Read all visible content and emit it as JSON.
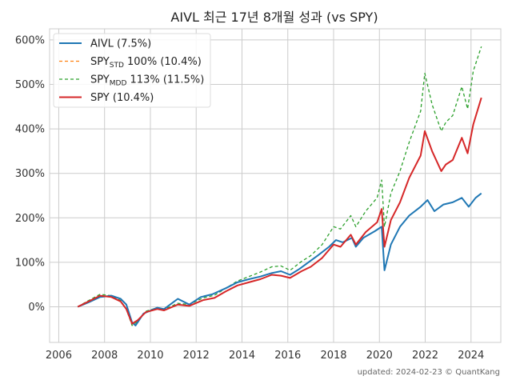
{
  "chart_data": {
    "type": "line",
    "title": "AIVL 최근 17년 8개월 성과 (vs SPY)",
    "xlabel": "",
    "ylabel": "",
    "xlim": [
      2005.6,
      2025.3
    ],
    "ylim": [
      -0.8,
      6.25
    ],
    "x_ticks": [
      {
        "value": 2006,
        "label": "2006"
      },
      {
        "value": 2008,
        "label": "2008"
      },
      {
        "value": 2010,
        "label": "2010"
      },
      {
        "value": 2012,
        "label": "2012"
      },
      {
        "value": 2014,
        "label": "2014"
      },
      {
        "value": 2016,
        "label": "2016"
      },
      {
        "value": 2018,
        "label": "2018"
      },
      {
        "value": 2020,
        "label": "2020"
      },
      {
        "value": 2022,
        "label": "2022"
      },
      {
        "value": 2024,
        "label": "2024"
      }
    ],
    "y_ticks": [
      {
        "value": 0,
        "label": "0%"
      },
      {
        "value": 1,
        "label": "100%"
      },
      {
        "value": 2,
        "label": "200%"
      },
      {
        "value": 3,
        "label": "300%"
      },
      {
        "value": 4,
        "label": "400%"
      },
      {
        "value": 5,
        "label": "500%"
      },
      {
        "value": 6,
        "label": "600%"
      }
    ],
    "grid": true,
    "legend_position": "top-left",
    "footer": "updated: 2024-02-23 © QuantKang",
    "series": [
      {
        "name": "AIVL (7.5%)",
        "legend_main": "AIVL (7.5%)",
        "legend_sub": "",
        "legend_tail": "",
        "color": "#1f77b4",
        "dash": "solid",
        "draw_order": 2,
        "points": [
          [
            2006.83,
            0.0
          ],
          [
            2007.3,
            0.1
          ],
          [
            2007.8,
            0.22
          ],
          [
            2008.3,
            0.25
          ],
          [
            2008.7,
            0.18
          ],
          [
            2008.95,
            0.05
          ],
          [
            2009.2,
            -0.35
          ],
          [
            2009.35,
            -0.42
          ],
          [
            2009.7,
            -0.15
          ],
          [
            2010.3,
            -0.02
          ],
          [
            2010.6,
            -0.05
          ],
          [
            2011.2,
            0.18
          ],
          [
            2011.7,
            0.05
          ],
          [
            2012.2,
            0.22
          ],
          [
            2012.7,
            0.28
          ],
          [
            2013.3,
            0.42
          ],
          [
            2013.8,
            0.55
          ],
          [
            2014.3,
            0.62
          ],
          [
            2014.8,
            0.68
          ],
          [
            2015.3,
            0.76
          ],
          [
            2015.7,
            0.8
          ],
          [
            2016.1,
            0.72
          ],
          [
            2016.5,
            0.85
          ],
          [
            2016.9,
            1.0
          ],
          [
            2017.3,
            1.15
          ],
          [
            2017.8,
            1.35
          ],
          [
            2018.1,
            1.5
          ],
          [
            2018.4,
            1.45
          ],
          [
            2018.8,
            1.55
          ],
          [
            2018.97,
            1.35
          ],
          [
            2019.3,
            1.55
          ],
          [
            2019.8,
            1.7
          ],
          [
            2020.1,
            1.8
          ],
          [
            2020.22,
            0.82
          ],
          [
            2020.5,
            1.4
          ],
          [
            2020.9,
            1.8
          ],
          [
            2021.3,
            2.05
          ],
          [
            2021.8,
            2.25
          ],
          [
            2022.1,
            2.4
          ],
          [
            2022.4,
            2.15
          ],
          [
            2022.8,
            2.3
          ],
          [
            2023.2,
            2.35
          ],
          [
            2023.6,
            2.45
          ],
          [
            2023.9,
            2.25
          ],
          [
            2024.2,
            2.45
          ],
          [
            2024.45,
            2.55
          ]
        ]
      },
      {
        "name": "SPYSTD 100% (10.4%)",
        "legend_main": "SPY",
        "legend_sub": "STD",
        "legend_tail": " 100% (10.4%)",
        "color": "#ff7f0e",
        "dash": "4,3",
        "draw_order": 1,
        "points": [
          [
            2006.83,
            0.0
          ],
          [
            2007.3,
            0.12
          ],
          [
            2007.8,
            0.25
          ],
          [
            2008.3,
            0.22
          ],
          [
            2008.7,
            0.12
          ],
          [
            2008.95,
            -0.05
          ],
          [
            2009.2,
            -0.38
          ],
          [
            2009.45,
            -0.3
          ],
          [
            2009.8,
            -0.12
          ],
          [
            2010.3,
            -0.05
          ],
          [
            2010.6,
            -0.08
          ],
          [
            2011.2,
            0.05
          ],
          [
            2011.7,
            0.02
          ],
          [
            2012.3,
            0.15
          ],
          [
            2012.8,
            0.2
          ],
          [
            2013.3,
            0.35
          ],
          [
            2013.8,
            0.48
          ],
          [
            2014.3,
            0.55
          ],
          [
            2014.8,
            0.62
          ],
          [
            2015.3,
            0.72
          ],
          [
            2015.7,
            0.7
          ],
          [
            2016.1,
            0.65
          ],
          [
            2016.6,
            0.8
          ],
          [
            2017.0,
            0.9
          ],
          [
            2017.5,
            1.1
          ],
          [
            2018.0,
            1.4
          ],
          [
            2018.3,
            1.35
          ],
          [
            2018.75,
            1.62
          ],
          [
            2018.97,
            1.4
          ],
          [
            2019.4,
            1.68
          ],
          [
            2019.9,
            1.9
          ],
          [
            2020.1,
            2.2
          ],
          [
            2020.22,
            1.35
          ],
          [
            2020.5,
            1.95
          ],
          [
            2020.9,
            2.35
          ],
          [
            2021.3,
            2.9
          ],
          [
            2021.8,
            3.4
          ],
          [
            2021.98,
            3.95
          ],
          [
            2022.3,
            3.5
          ],
          [
            2022.7,
            3.05
          ],
          [
            2022.9,
            3.2
          ],
          [
            2023.2,
            3.3
          ],
          [
            2023.6,
            3.8
          ],
          [
            2023.85,
            3.45
          ],
          [
            2024.1,
            4.1
          ],
          [
            2024.45,
            4.7
          ]
        ]
      },
      {
        "name": "SPYMDD 113% (11.5%)",
        "legend_main": "SPY",
        "legend_sub": "MDD",
        "legend_tail": " 113% (11.5%)",
        "color": "#2ca02c",
        "dash": "4,3",
        "draw_order": 1,
        "points": [
          [
            2006.83,
            0.0
          ],
          [
            2007.3,
            0.14
          ],
          [
            2007.8,
            0.28
          ],
          [
            2008.3,
            0.25
          ],
          [
            2008.7,
            0.14
          ],
          [
            2008.95,
            -0.05
          ],
          [
            2009.2,
            -0.42
          ],
          [
            2009.45,
            -0.33
          ],
          [
            2009.8,
            -0.1
          ],
          [
            2010.3,
            -0.02
          ],
          [
            2010.6,
            -0.06
          ],
          [
            2011.2,
            0.08
          ],
          [
            2011.7,
            0.05
          ],
          [
            2012.3,
            0.2
          ],
          [
            2012.8,
            0.26
          ],
          [
            2013.3,
            0.42
          ],
          [
            2013.8,
            0.58
          ],
          [
            2014.3,
            0.68
          ],
          [
            2014.8,
            0.78
          ],
          [
            2015.3,
            0.9
          ],
          [
            2015.7,
            0.92
          ],
          [
            2016.1,
            0.82
          ],
          [
            2016.6,
            1.02
          ],
          [
            2017.0,
            1.15
          ],
          [
            2017.5,
            1.4
          ],
          [
            2018.0,
            1.8
          ],
          [
            2018.3,
            1.75
          ],
          [
            2018.75,
            2.05
          ],
          [
            2018.97,
            1.8
          ],
          [
            2019.4,
            2.15
          ],
          [
            2019.9,
            2.45
          ],
          [
            2020.1,
            2.85
          ],
          [
            2020.22,
            1.8
          ],
          [
            2020.5,
            2.55
          ],
          [
            2020.9,
            3.05
          ],
          [
            2021.3,
            3.7
          ],
          [
            2021.8,
            4.4
          ],
          [
            2021.98,
            5.25
          ],
          [
            2022.3,
            4.55
          ],
          [
            2022.7,
            3.95
          ],
          [
            2022.9,
            4.15
          ],
          [
            2023.2,
            4.3
          ],
          [
            2023.6,
            4.95
          ],
          [
            2023.85,
            4.45
          ],
          [
            2024.1,
            5.3
          ],
          [
            2024.45,
            5.85
          ]
        ]
      },
      {
        "name": "SPY (10.4%)",
        "legend_main": "SPY (10.4%)",
        "legend_sub": "",
        "legend_tail": "",
        "color": "#d62728",
        "dash": "solid",
        "draw_order": 3,
        "points": [
          [
            2006.83,
            0.0
          ],
          [
            2007.3,
            0.12
          ],
          [
            2007.8,
            0.25
          ],
          [
            2008.3,
            0.22
          ],
          [
            2008.7,
            0.12
          ],
          [
            2008.95,
            -0.05
          ],
          [
            2009.2,
            -0.38
          ],
          [
            2009.45,
            -0.3
          ],
          [
            2009.8,
            -0.12
          ],
          [
            2010.3,
            -0.05
          ],
          [
            2010.6,
            -0.08
          ],
          [
            2011.2,
            0.05
          ],
          [
            2011.7,
            0.02
          ],
          [
            2012.3,
            0.15
          ],
          [
            2012.8,
            0.2
          ],
          [
            2013.3,
            0.35
          ],
          [
            2013.8,
            0.48
          ],
          [
            2014.3,
            0.55
          ],
          [
            2014.8,
            0.62
          ],
          [
            2015.3,
            0.72
          ],
          [
            2015.7,
            0.7
          ],
          [
            2016.1,
            0.65
          ],
          [
            2016.6,
            0.8
          ],
          [
            2017.0,
            0.9
          ],
          [
            2017.5,
            1.1
          ],
          [
            2018.0,
            1.4
          ],
          [
            2018.3,
            1.35
          ],
          [
            2018.75,
            1.62
          ],
          [
            2018.97,
            1.4
          ],
          [
            2019.4,
            1.68
          ],
          [
            2019.9,
            1.9
          ],
          [
            2020.1,
            2.2
          ],
          [
            2020.22,
            1.35
          ],
          [
            2020.5,
            1.95
          ],
          [
            2020.9,
            2.35
          ],
          [
            2021.3,
            2.9
          ],
          [
            2021.8,
            3.4
          ],
          [
            2021.98,
            3.95
          ],
          [
            2022.3,
            3.5
          ],
          [
            2022.7,
            3.05
          ],
          [
            2022.9,
            3.2
          ],
          [
            2023.2,
            3.3
          ],
          [
            2023.6,
            3.8
          ],
          [
            2023.85,
            3.45
          ],
          [
            2024.1,
            4.1
          ],
          [
            2024.45,
            4.7
          ]
        ]
      }
    ]
  }
}
